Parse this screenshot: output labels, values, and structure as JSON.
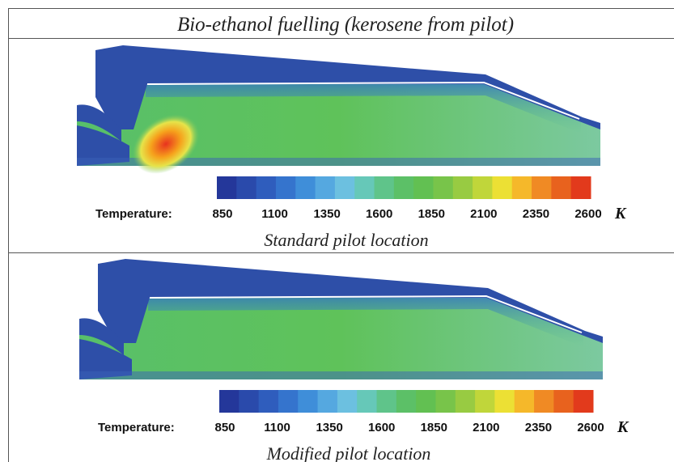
{
  "header": {
    "title": "Bio-ethanol fuelling (kerosene from pilot)"
  },
  "panels": [
    {
      "colorbar": {
        "label": "Temperature:",
        "ticks": [
          850,
          1100,
          1350,
          1600,
          1850,
          2100,
          2350,
          2600
        ],
        "unit": "K"
      },
      "caption": "Standard pilot location"
    },
    {
      "colorbar": {
        "label": "Temperature:",
        "ticks": [
          850,
          1100,
          1350,
          1600,
          1850,
          2100,
          2350,
          2600
        ],
        "unit": "K"
      },
      "caption": "Modified pilot location"
    }
  ]
}
